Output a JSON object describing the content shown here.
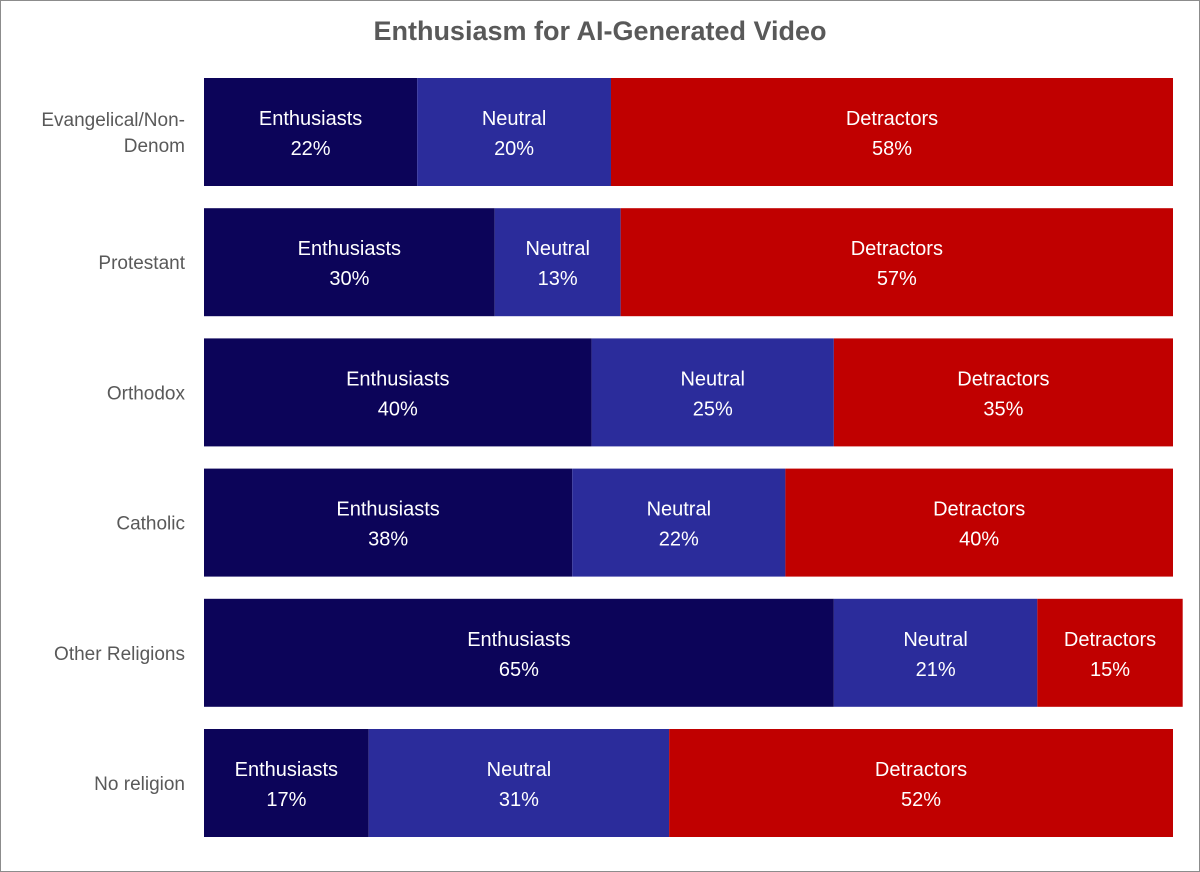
{
  "chart_data": {
    "type": "bar",
    "orientation": "horizontal",
    "stacked": true,
    "percent_stacked": true,
    "title": "Enthusiasm for AI-Generated Video",
    "xlabel": "",
    "ylabel": "",
    "xlim": [
      0,
      100
    ],
    "grid": false,
    "legend": "none",
    "categories": [
      "Evangelical/Non-Denom",
      "Protestant",
      "Orthodox",
      "Catholic",
      "Other Religions",
      "No religion"
    ],
    "category_label_lines": [
      [
        "Evangelical/Non-",
        "Denom"
      ],
      [
        "Protestant"
      ],
      [
        "Orthodox"
      ],
      [
        "Catholic"
      ],
      [
        "Other Religions"
      ],
      [
        "No religion"
      ]
    ],
    "series": [
      {
        "name": "Enthusiasts",
        "color": "#0C0459",
        "values": [
          22,
          30,
          40,
          38,
          65,
          17
        ],
        "labels": [
          "22%",
          "30%",
          "40%",
          "38%",
          "65%",
          "17%"
        ]
      },
      {
        "name": "Neutral",
        "color": "#2B2C9B",
        "values": [
          20,
          13,
          25,
          22,
          21,
          31
        ],
        "labels": [
          "20%",
          "13%",
          "25%",
          "22%",
          "21%",
          "31%"
        ]
      },
      {
        "name": "Detractors",
        "color": "#C00000",
        "values": [
          58,
          57,
          35,
          40,
          15,
          52
        ],
        "labels": [
          "58%",
          "57%",
          "35%",
          "40%",
          "15%",
          "52%"
        ]
      }
    ]
  }
}
